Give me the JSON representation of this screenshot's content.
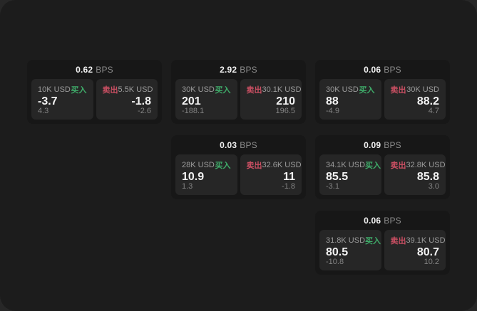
{
  "labels": {
    "bps_unit": "BPS",
    "buy": "买入",
    "sell": "卖出"
  },
  "colors": {
    "buy": "#3fab69",
    "sell": "#c94f62",
    "surface": "#1c1c1c",
    "card": "#171717",
    "panel": "#262626"
  },
  "cards": [
    {
      "bps": "0.62",
      "buy_amount": "10K USD",
      "buy_value": "-3.7",
      "buy_delta": "4.3",
      "sell_amount": "5.5K USD",
      "sell_value": "-1.8",
      "sell_delta": "-2.6"
    },
    {
      "bps": "2.92",
      "buy_amount": "30K USD",
      "buy_value": "201",
      "buy_delta": "-188.1",
      "sell_amount": "30.1K USD",
      "sell_value": "210",
      "sell_delta": "196.5"
    },
    {
      "bps": "0.06",
      "buy_amount": "30K USD",
      "buy_value": "88",
      "buy_delta": "-4.9",
      "sell_amount": "30K USD",
      "sell_value": "88.2",
      "sell_delta": "4.7"
    },
    {
      "bps": "0.03",
      "buy_amount": "28K USD",
      "buy_value": "10.9",
      "buy_delta": "1.3",
      "sell_amount": "32.6K USD",
      "sell_value": "11",
      "sell_delta": "-1.8"
    },
    {
      "bps": "0.09",
      "buy_amount": "34.1K USD",
      "buy_value": "85.5",
      "buy_delta": "-3.1",
      "sell_amount": "32.8K USD",
      "sell_value": "85.8",
      "sell_delta": "3.0"
    },
    {
      "bps": "0.06",
      "buy_amount": "31.8K USD",
      "buy_value": "80.5",
      "buy_delta": "-10.8",
      "sell_amount": "39.1K USD",
      "sell_value": "80.7",
      "sell_delta": "10.2"
    }
  ]
}
